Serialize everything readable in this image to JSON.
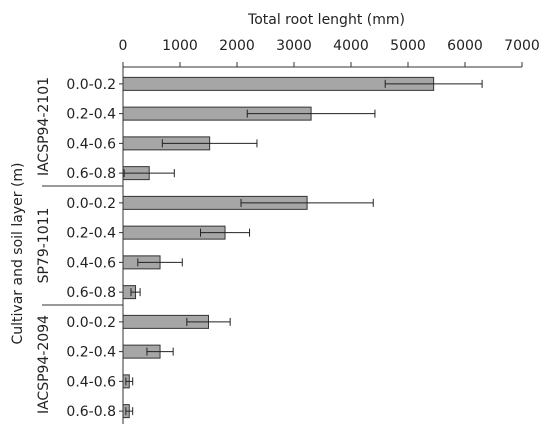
{
  "chart_data": {
    "type": "bar",
    "orientation": "horizontal",
    "title": "",
    "xlabel": "Total root lenght (mm)",
    "ylabel": "Cultivar and soil layer (m)",
    "xlim": [
      0,
      7000
    ],
    "xticks": [
      0,
      1000,
      2000,
      3000,
      4000,
      5000,
      6000,
      7000
    ],
    "grid": false,
    "groups": [
      {
        "name": "IACSP94-2101",
        "categories": [
          "0.0-0.2",
          "0.2-0.4",
          "0.4-0.6",
          "0.6-0.8"
        ],
        "values": [
          5450,
          3300,
          1520,
          460
        ],
        "errors": [
          850,
          1120,
          830,
          440
        ]
      },
      {
        "name": "SP79-1011",
        "categories": [
          "0.0-0.2",
          "0.2-0.4",
          "0.4-0.6",
          "0.6-0.8"
        ],
        "values": [
          3230,
          1790,
          650,
          220
        ],
        "errors": [
          1160,
          430,
          390,
          80
        ]
      },
      {
        "name": "IACSP94-2094",
        "categories": [
          "0.0-0.2",
          "0.2-0.4",
          "0.4-0.6",
          "0.6-0.8"
        ],
        "values": [
          1500,
          650,
          110,
          110
        ],
        "errors": [
          380,
          230,
          60,
          60
        ]
      }
    ],
    "colors": {
      "bar": "#a6a6a6",
      "outline": "#333333"
    }
  }
}
